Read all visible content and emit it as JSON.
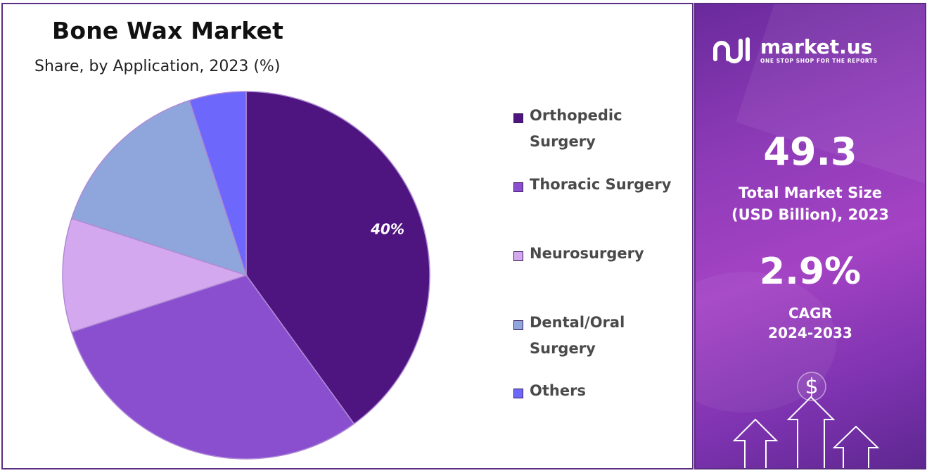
{
  "chart_data": {
    "type": "pie",
    "title": "Bone Wax Market",
    "subtitle": "Share, by Application, 2023 (%)",
    "categories": [
      "Orthopedic Surgery",
      "Thoracic Surgery",
      "Neurosurgery",
      "Dental/Oral Surgery",
      "Others"
    ],
    "values": [
      40,
      30,
      10,
      15,
      5
    ],
    "colors": [
      "#4e1580",
      "#8a4fcf",
      "#d4a8ee",
      "#8ea6dc",
      "#6d67fb"
    ],
    "data_labels": [
      "40%",
      "",
      "",
      "",
      ""
    ],
    "legend_position": "right"
  },
  "legend": {
    "items": [
      {
        "label_line1": "Orthopedic",
        "label_line2": "Surgery"
      },
      {
        "label_line1": "Thoracic Surgery",
        "label_line2": ""
      },
      {
        "label_line1": "Neurosurgery",
        "label_line2": ""
      },
      {
        "label_line1": "Dental/Oral",
        "label_line2": "Surgery"
      },
      {
        "label_line1": "Others",
        "label_line2": ""
      }
    ]
  },
  "brand": {
    "name": "market.us",
    "tagline": "ONE STOP SHOP FOR THE REPORTS",
    "logo_icon": "market-us-logo-icon"
  },
  "stats": {
    "market_size_value": "49.3",
    "market_size_label_line1": "Total Market Size",
    "market_size_label_line2": "(USD Billion), 2023",
    "cagr_value": "2.9%",
    "cagr_label_line1": "CAGR",
    "cagr_label_line2": "2024-2033"
  },
  "decor": {
    "dollar_symbol": "$",
    "icon": "growth-arrows-icon"
  }
}
